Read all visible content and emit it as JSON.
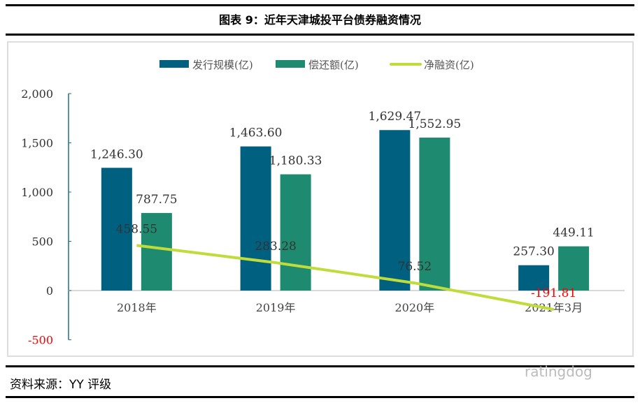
{
  "title": "图表 9：近年天津城投平台债券融资情况",
  "source": "资料来源：YY 评级",
  "watermark": "ratingdog",
  "chart_data": {
    "type": "bar",
    "categories": [
      "2018年",
      "2019年",
      "2020年",
      "2021年3月"
    ],
    "series": [
      {
        "name": "发行规模(亿)",
        "type": "bar",
        "color": "#00607f",
        "values": [
          1246.3,
          1463.6,
          1629.47,
          257.3
        ],
        "labels": [
          "1,246.30",
          "1,463.60",
          "1,629.47",
          "257.30"
        ]
      },
      {
        "name": "偿还额(亿)",
        "type": "bar",
        "color": "#1e8a70",
        "values": [
          787.75,
          1180.33,
          1552.95,
          449.11
        ],
        "labels": [
          "787.75",
          "1,180.33",
          "1,552.95",
          "449.11"
        ]
      },
      {
        "name": "净融资(亿)",
        "type": "line",
        "color": "#c0dc3a",
        "values": [
          458.55,
          283.28,
          76.52,
          -191.81
        ],
        "labels": [
          "458.55",
          "283.28",
          "76.52",
          "-191.81"
        ]
      }
    ],
    "yticks": [
      "2,000",
      "1,500",
      "1,000",
      "500",
      "0",
      "-500"
    ],
    "ytick_values": [
      2000,
      1500,
      1000,
      500,
      0,
      -500
    ],
    "ylim": [
      -500,
      2000
    ],
    "negative_color": "#ff0000",
    "legend": "top",
    "grid": false
  }
}
